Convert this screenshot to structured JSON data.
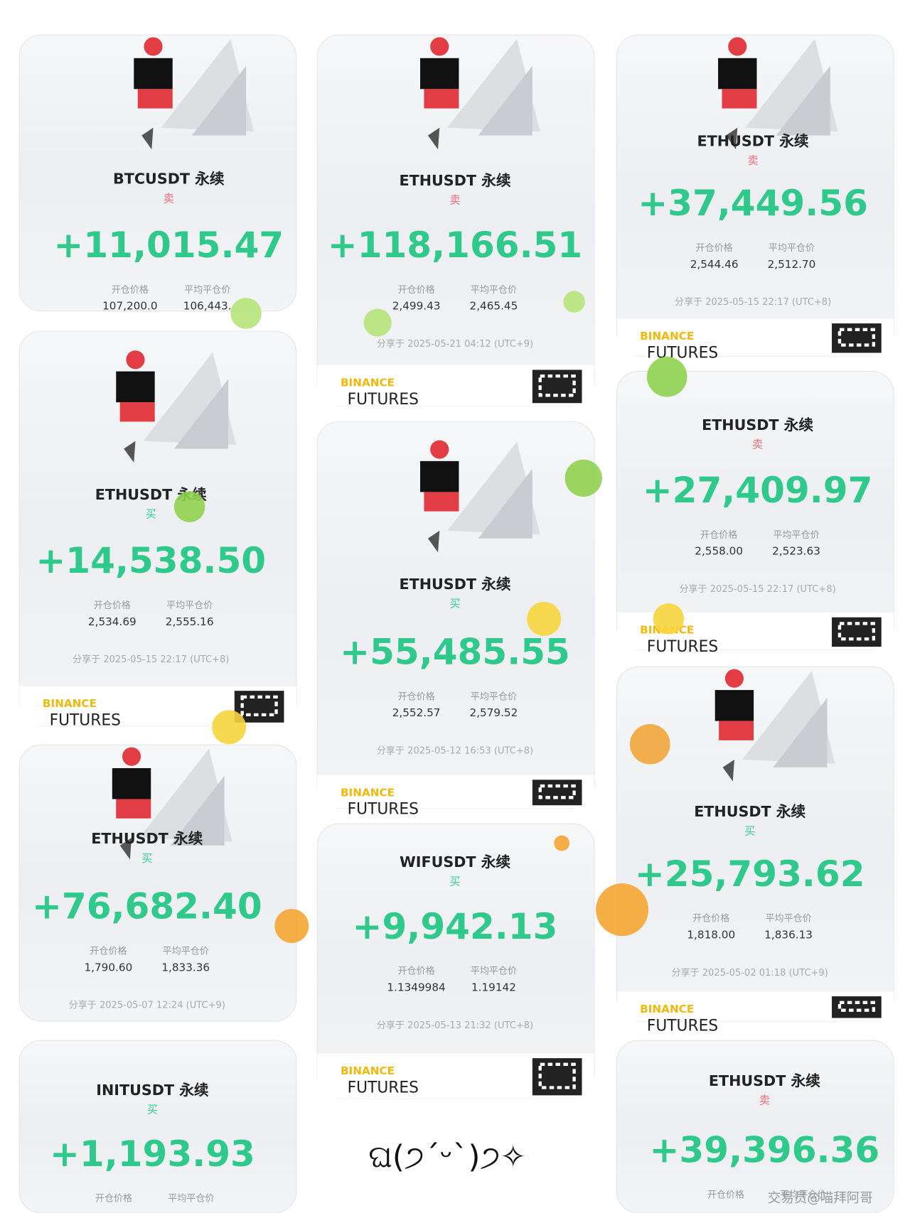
{
  "cards": [
    {
      "symbol": "BTCUSDT 永续",
      "side": "卖",
      "side_color": "#f26a77",
      "pnl": "+11,015.47",
      "open_label": "开仓价格",
      "open_price": "107,200.0",
      "close_label": "平均平仓价",
      "close_price": "106,443."
    },
    {
      "symbol": "ETHUSDT 永续",
      "side": "买",
      "side_color": "#3ccf95",
      "pnl": "+14,538.50",
      "open_label": "开仓价格",
      "open_price": "2,534.69",
      "close_label": "平均平仓价",
      "close_price": "2,555.16",
      "shared": "分享于 2025-05-15 22:17 (UTC+8)"
    },
    {
      "symbol": "ETHUSDT 永续",
      "side": "买",
      "side_color": "#3ccf95",
      "pnl": "+76,682.40",
      "open_label": "开仓价格",
      "open_price": "1,790.60",
      "close_label": "平均平仓价",
      "close_price": "1,833.36",
      "shared": "分享于 2025-05-07 12:24 (UTC+9)"
    },
    {
      "symbol": "INITUSDT 永续",
      "side": "买",
      "side_color": "#3ccf95",
      "pnl": "+1,193.93",
      "open_label": "开仓价格",
      "close_label": "平均平仓价"
    },
    {
      "symbol": "ETHUSDT 永续",
      "side": "卖",
      "side_color": "#f26a77",
      "pnl": "+118,166.51",
      "open_label": "开仓价格",
      "open_price": "2,499.43",
      "close_label": "平均平仓价",
      "close_price": "2,465.45",
      "shared": "分享于 2025-05-21 04:12 (UTC+9)"
    },
    {
      "symbol": "ETHUSDT 永续",
      "side": "买",
      "side_color": "#3ccf95",
      "pnl": "+55,485.55",
      "open_label": "开仓价格",
      "open_price": "2,552.57",
      "close_label": "平均平仓价",
      "close_price": "2,579.52",
      "shared": "分享于 2025-05-12 16:53 (UTC+8)"
    },
    {
      "symbol": "WIFUSDT 永续",
      "side": "买",
      "side_color": "#3ccf95",
      "pnl": "+9,942.13",
      "open_label": "开仓价格",
      "open_price": "1.1349984",
      "close_label": "平均平仓价",
      "close_price": "1.19142",
      "shared": "分享于 2025-05-13 21:32 (UTC+8)"
    },
    {
      "symbol": "ETHUSDT 永续",
      "side": "卖",
      "side_color": "#f26a77",
      "pnl": "+37,449.56",
      "open_label": "开仓价格",
      "open_price": "2,544.46",
      "close_label": "平均平仓价",
      "close_price": "2,512.70",
      "shared": "分享于 2025-05-15 22:17 (UTC+8)"
    },
    {
      "symbol": "ETHUSDT 永续",
      "side": "卖",
      "side_color": "#f26a77",
      "pnl": "+27,409.97",
      "open_label": "开仓价格",
      "open_price": "2,558.00",
      "close_label": "平均平仓价",
      "close_price": "2,523.63",
      "shared": "分享于 2025-05-15 22:17 (UTC+8)"
    },
    {
      "symbol": "ETHUSDT 永续",
      "side": "买",
      "side_color": "#3ccf95",
      "pnl": "+25,793.62",
      "open_label": "开仓价格",
      "open_price": "1,818.00",
      "close_label": "平均平仓价",
      "close_price": "1,836.13",
      "shared": "分享于 2025-05-02 01:18 (UTC+9)"
    },
    {
      "symbol": "ETHUSDT 永续",
      "side": "卖",
      "side_color": "#f26a77",
      "pnl": "+39,396.36",
      "open_label": "开仓价格",
      "close_label": "平均平仓价"
    }
  ],
  "brand": {
    "name": "BINANCE",
    "product": "FUTURES"
  },
  "emoticon": "ଘ(੭ˊᵕˋ)੭✧",
  "watermark": "交易员@喵拜阿哥"
}
